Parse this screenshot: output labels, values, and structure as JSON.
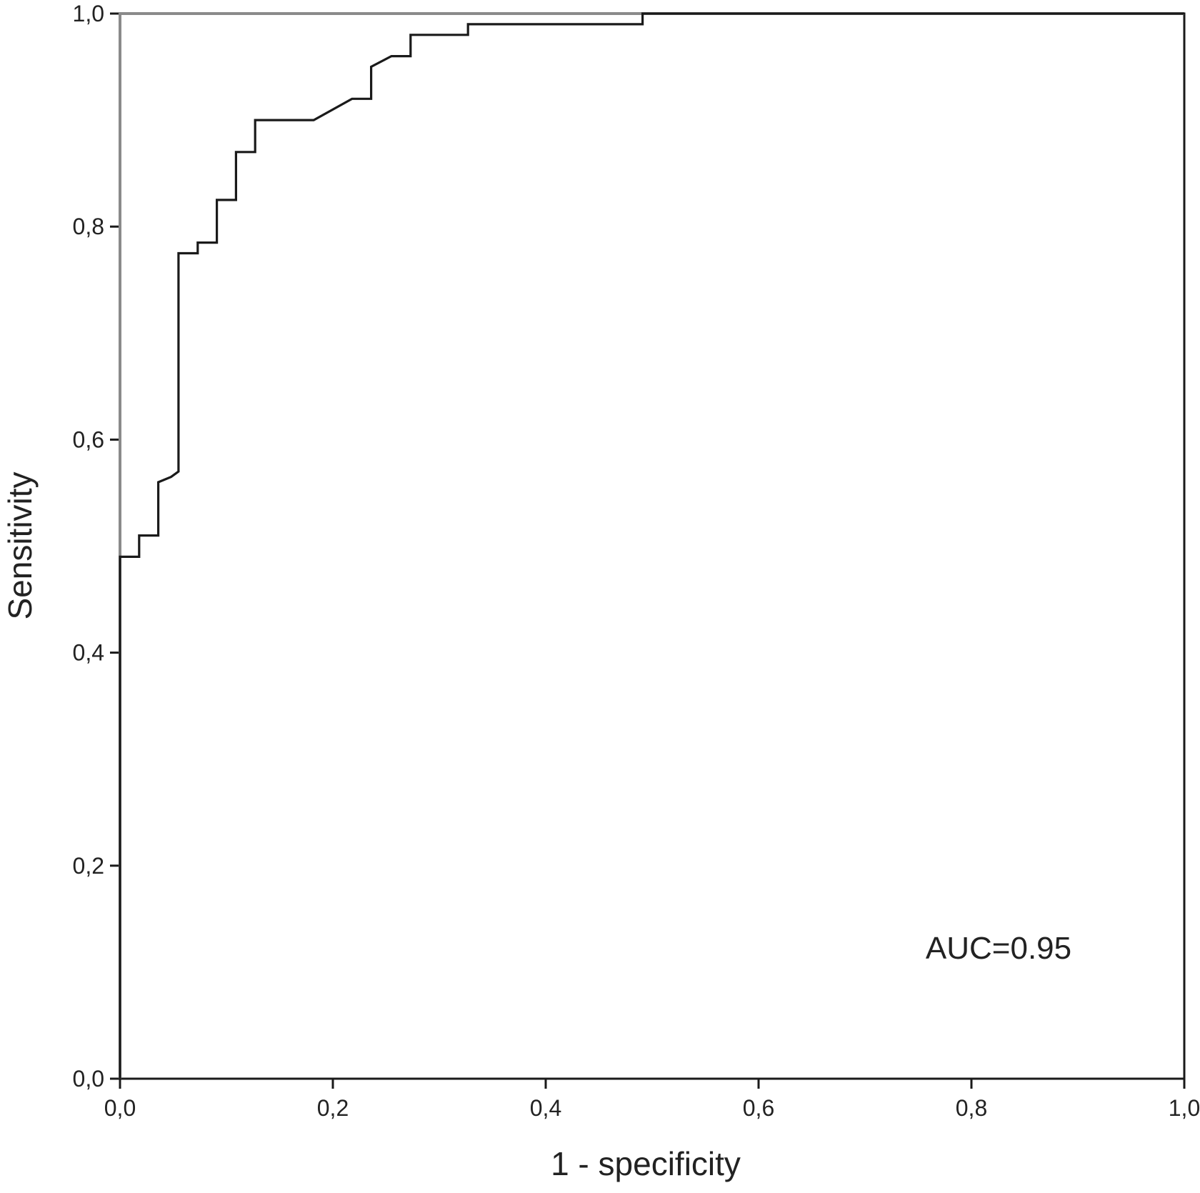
{
  "chart_data": {
    "type": "line",
    "title": "",
    "xlabel": "1 - specificity",
    "ylabel": "Sensitivity",
    "xlim": [
      0,
      1
    ],
    "ylim": [
      0,
      1
    ],
    "x_ticks": [
      "0,0",
      "0,2",
      "0,4",
      "0,6",
      "0,8",
      "1,0"
    ],
    "y_ticks": [
      "0,0",
      "0,2",
      "0,4",
      "0,6",
      "0,8",
      "1,0"
    ],
    "grid": false,
    "annotation": "AUC=0.95",
    "series": [
      {
        "role": "reference",
        "color": "#8a8a8a",
        "points": [
          [
            0,
            0
          ],
          [
            0,
            1
          ],
          [
            1,
            1
          ]
        ]
      },
      {
        "role": "roc",
        "color": "#1a1a1a",
        "points": [
          [
            0,
            0
          ],
          [
            0,
            0.49
          ],
          [
            0.018,
            0.49
          ],
          [
            0.018,
            0.51
          ],
          [
            0.036,
            0.51
          ],
          [
            0.036,
            0.56
          ],
          [
            0.048,
            0.565
          ],
          [
            0.055,
            0.57
          ],
          [
            0.055,
            0.775
          ],
          [
            0.073,
            0.775
          ],
          [
            0.073,
            0.785
          ],
          [
            0.091,
            0.785
          ],
          [
            0.091,
            0.825
          ],
          [
            0.109,
            0.825
          ],
          [
            0.109,
            0.87
          ],
          [
            0.127,
            0.87
          ],
          [
            0.127,
            0.9
          ],
          [
            0.182,
            0.9
          ],
          [
            0.218,
            0.92
          ],
          [
            0.236,
            0.92
          ],
          [
            0.236,
            0.95
          ],
          [
            0.255,
            0.96
          ],
          [
            0.273,
            0.96
          ],
          [
            0.273,
            0.98
          ],
          [
            0.327,
            0.98
          ],
          [
            0.327,
            0.99
          ],
          [
            0.491,
            0.99
          ],
          [
            0.491,
            1.0
          ],
          [
            1.0,
            1.0
          ]
        ]
      }
    ]
  }
}
